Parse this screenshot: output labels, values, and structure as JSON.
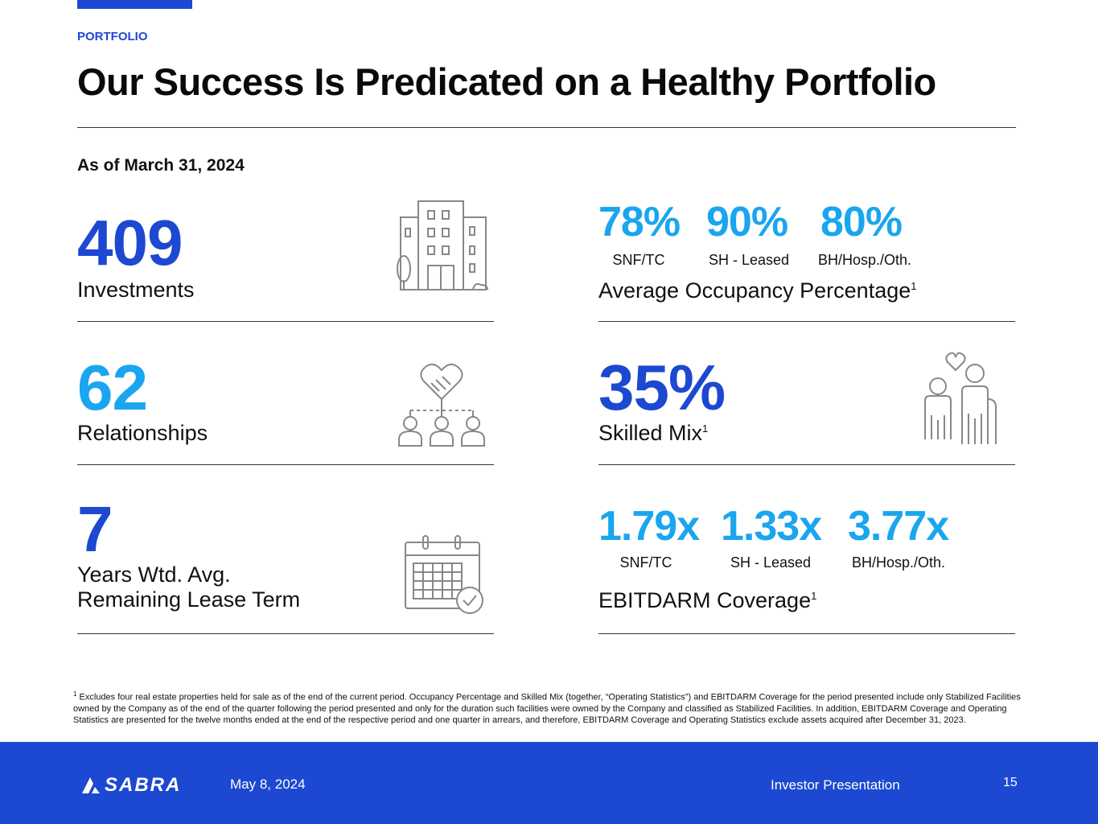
{
  "header": {
    "section": "PORTFOLIO",
    "title": "Our Success Is Predicated on a Healthy Portfolio",
    "as_of": "As of March 31, 2024"
  },
  "metrics": {
    "investments": {
      "value": "409",
      "label": "Investments",
      "icon": "buildings-icon"
    },
    "relationships": {
      "value": "62",
      "label": "Relationships",
      "icon": "handshake-network-icon"
    },
    "lease_term": {
      "value": "7",
      "label_line1": "Years Wtd. Avg.",
      "label_line2": "Remaining Lease Term",
      "icon": "calendar-check-icon"
    },
    "occupancy": {
      "items": [
        {
          "value": "78%",
          "label": "SNF/TC"
        },
        {
          "value": "90%",
          "label": "SH - Leased"
        },
        {
          "value": "80%",
          "label": "BH/Hosp./Oth."
        }
      ],
      "title": "Average Occupancy Percentage",
      "footnote_marker": "1"
    },
    "skilled_mix": {
      "value": "35%",
      "label": "Skilled Mix",
      "footnote_marker": "1",
      "icon": "family-icon"
    },
    "ebitdarm": {
      "items": [
        {
          "value": "1.79x",
          "label": "SNF/TC"
        },
        {
          "value": "1.33x",
          "label": "SH - Leased"
        },
        {
          "value": "3.77x",
          "label": "BH/Hosp./Oth."
        }
      ],
      "title": "EBITDARM Coverage",
      "footnote_marker": "1"
    }
  },
  "footnote": {
    "marker": "1",
    "text": "Excludes four real estate properties held for sale as of the end of the current period. Occupancy Percentage and Skilled Mix (together, “Operating Statistics”) and EBITDARM Coverage for the period presented include only Stabilized Facilities owned by the Company as of the end of the quarter following the period presented and only for the duration such facilities were owned by the Company and classified as Stabilized Facilities. In addition, EBITDARM Coverage and Operating Statistics are presented for the twelve months ended at the end of the respective period and one quarter in arrears, and therefore, EBITDARM Coverage and Operating Statistics exclude assets acquired after December 31, 2023."
  },
  "footer": {
    "logo": "SABRA",
    "date": "May 8, 2024",
    "presentation": "Investor Presentation",
    "page_number": "15"
  },
  "colors": {
    "accent": "#1d48d1",
    "light_accent": "#1aa5ef"
  }
}
